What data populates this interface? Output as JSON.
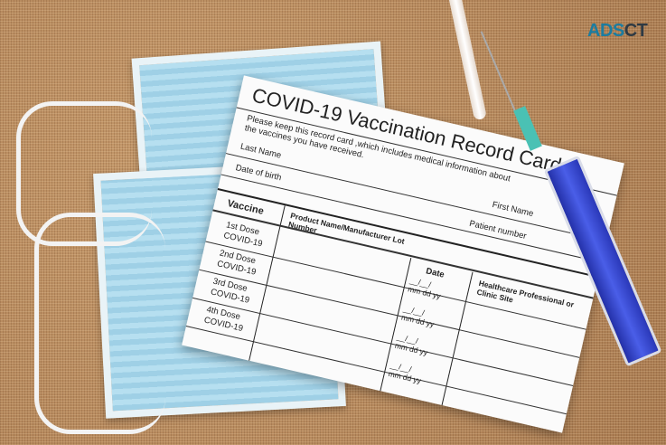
{
  "logo": {
    "text_a": "ADS",
    "text_b": "CT"
  },
  "card": {
    "title": "COVID-19 Vaccination Record Card",
    "instructions": "Please keep this record card ,which includes medical information about the vaccines you have received.",
    "last_name": "Last Name",
    "first_name": "First Name",
    "date_of_birth": "Date of birth",
    "patient_number": "Patient number",
    "headers": {
      "vaccine": "Vaccine",
      "product": "Product Name/Manufacturer Lot Number",
      "date": "Date",
      "site": "Healthcare Professional or Clinic Site"
    },
    "doses": [
      {
        "dose": "1st Dose",
        "vaccine": "COVID-19"
      },
      {
        "dose": "2nd Dose",
        "vaccine": "COVID-19"
      },
      {
        "dose": "3rd Dose",
        "vaccine": "COVID-19"
      },
      {
        "dose": "4th Dose",
        "vaccine": "COVID-19"
      }
    ],
    "date_format": "mm  dd  yy"
  },
  "colors": {
    "mask": "#a9d8ec",
    "syringe": "#3445c8",
    "background": "#b98a5e"
  }
}
